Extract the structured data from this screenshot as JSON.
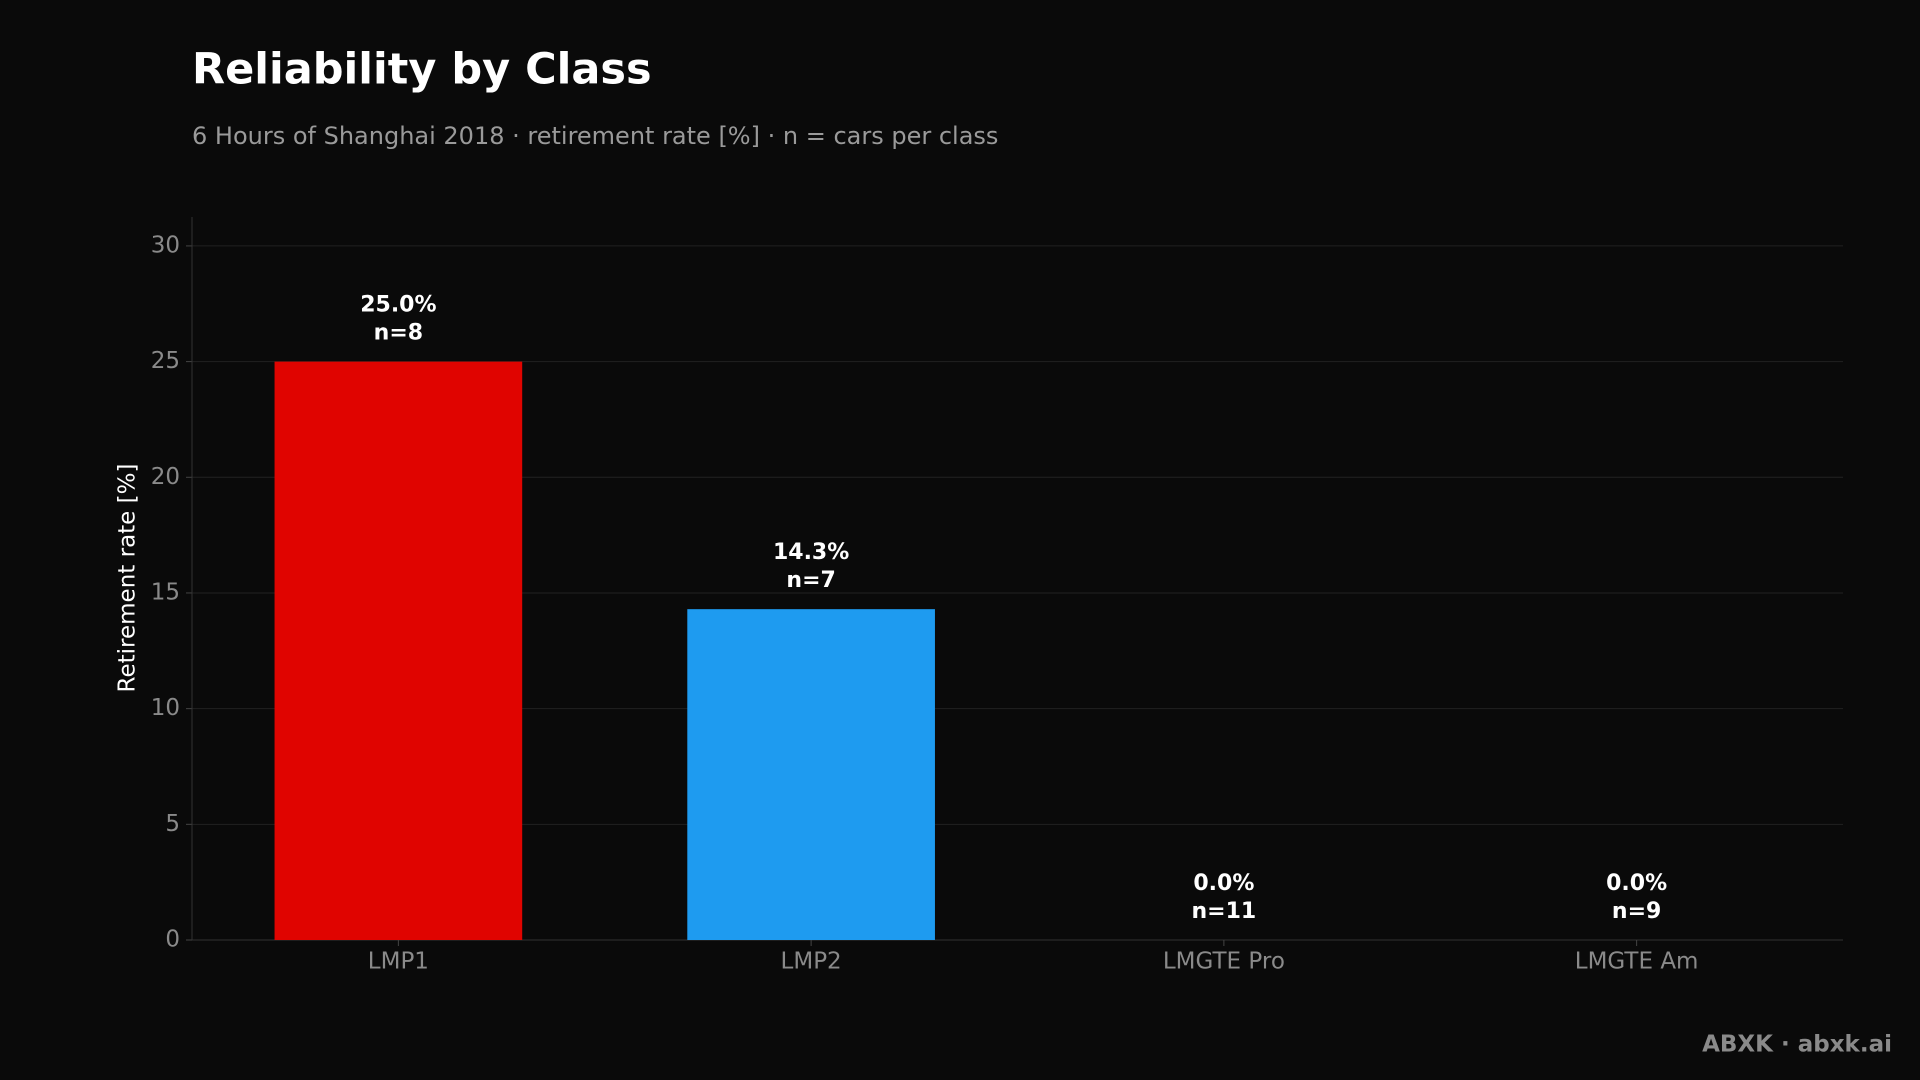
{
  "chart_data": {
    "type": "bar",
    "title": "Reliability by Class",
    "subtitle": "6 Hours of Shanghai 2018 · retirement rate [%] · n = cars per class",
    "y_label": "Retirement rate [%]",
    "categories": [
      "LMP1",
      "LMP2",
      "LMGTE Pro",
      "LMGTE Am"
    ],
    "values": [
      25.0,
      14.3,
      0.0,
      0.0
    ],
    "value_labels": [
      "25.0%",
      "14.3%",
      "0.0%",
      "0.0%"
    ],
    "sample_labels": [
      "n=8",
      "n=7",
      "n=11",
      "n=9"
    ],
    "colors": [
      "#e00400",
      "#1e9bf0",
      null,
      null
    ],
    "ylim": [
      0,
      31.25
    ],
    "yticks": [
      0,
      5,
      10,
      15,
      20,
      25,
      30
    ],
    "grid": true,
    "footer": "ABXK · abxk.ai"
  }
}
